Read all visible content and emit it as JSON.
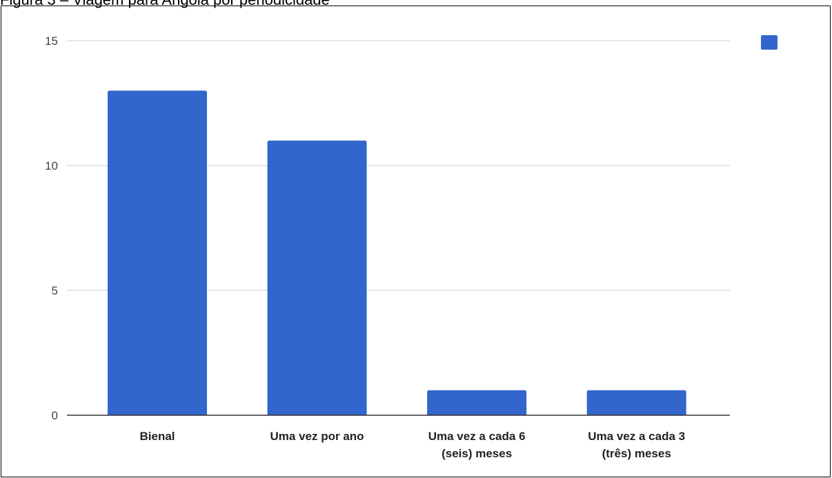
{
  "figure_caption": "Figura 3 – Viagem para Angola por periodicidade",
  "chart_data": {
    "type": "bar",
    "categories": [
      [
        "Bienal"
      ],
      [
        "Uma vez por ano"
      ],
      [
        "Uma vez a cada 6",
        "(seis) meses"
      ],
      [
        "Uma vez a cada 3",
        "(três) meses"
      ]
    ],
    "values": [
      13,
      11,
      1,
      1
    ],
    "ylim": [
      0,
      15
    ],
    "yticks": [
      0,
      5,
      10,
      15
    ],
    "grid": true,
    "legend": "top-right",
    "bar_color": "#3366cc",
    "grid_color": "#cccccc",
    "axis_color": "#333333"
  }
}
